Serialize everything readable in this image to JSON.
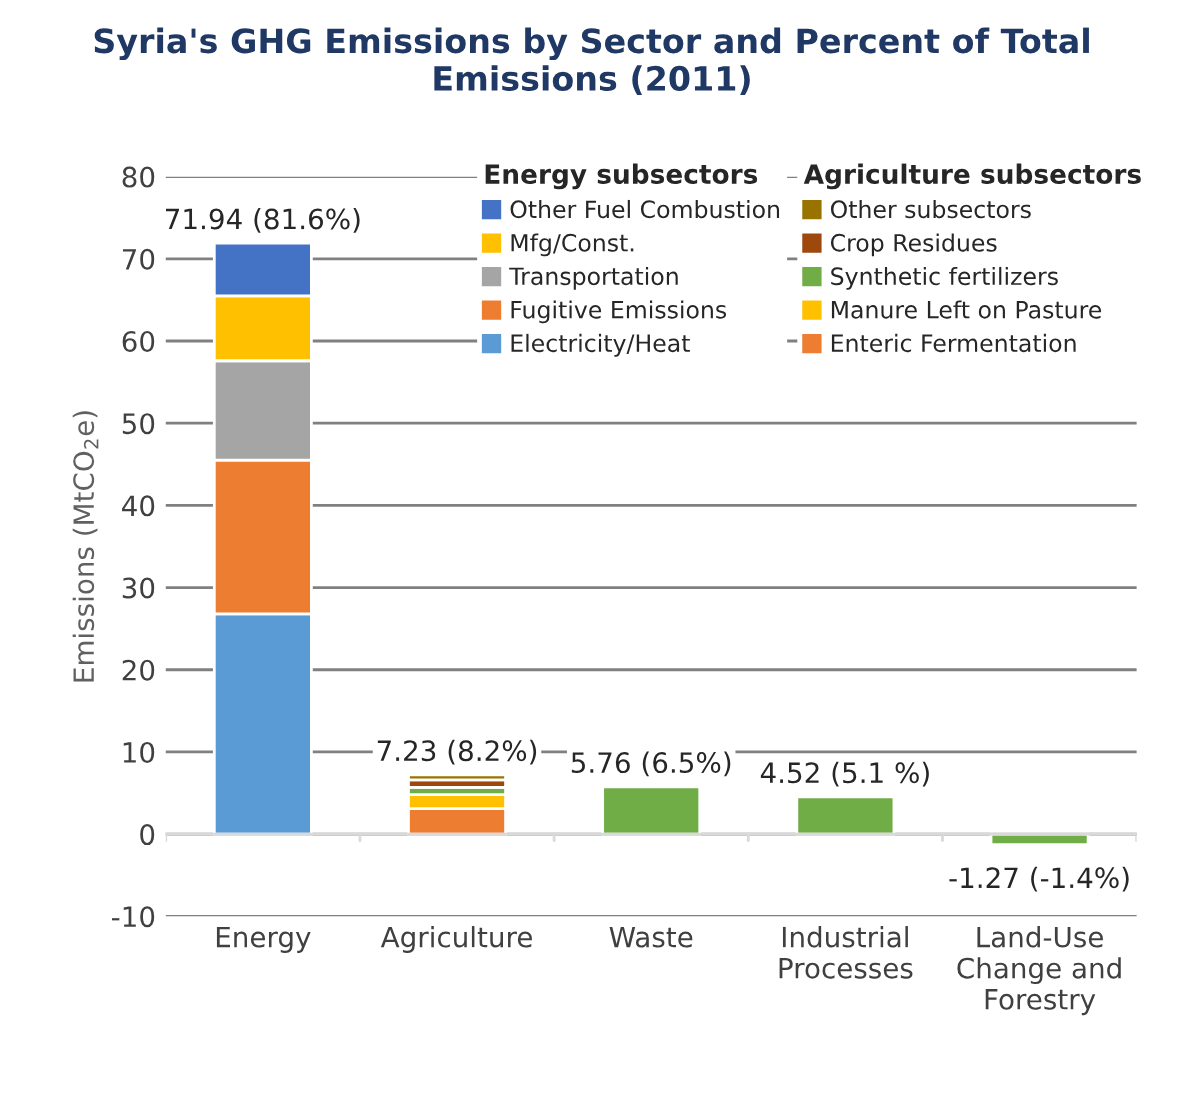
{
  "chart_data": {
    "type": "bar",
    "stacked": true,
    "title": "Syria's GHG Emissions by Sector and Percent of Total Emissions (2011)",
    "ylabel": "Emissions (MtCO$_{2}$e)",
    "categories": [
      "Energy",
      "Agriculture",
      "Waste",
      "Industrial\nProcesses",
      "Land-Use\nChange and\nForestry"
    ],
    "series": [
      {
        "name": "Electricity/Heat",
        "color": "#5b9bd5",
        "values": [
          26.8,
          null,
          null,
          null,
          null
        ]
      },
      {
        "name": "Fugitive Emissions",
        "color": "#ed7d31",
        "values": [
          18.7,
          null,
          null,
          null,
          null
        ]
      },
      {
        "name": "Transportation",
        "color": "#a5a5a5",
        "values": [
          12.1,
          null,
          null,
          null,
          null
        ]
      },
      {
        "name": "Mfg/Const.",
        "color": "#ffc000",
        "values": [
          7.9,
          null,
          null,
          null,
          null
        ]
      },
      {
        "name": "Other Fuel Combustion",
        "color": "#4472c4",
        "values": [
          6.4,
          null,
          null,
          null,
          null
        ]
      },
      {
        "name": "Enteric Fermentation",
        "color": "#ed7d31",
        "values": [
          null,
          3.1,
          null,
          null,
          null
        ]
      },
      {
        "name": "Manure Left on Pasture",
        "color": "#ffc000",
        "values": [
          null,
          1.7,
          null,
          null,
          null
        ]
      },
      {
        "name": "Synthetic fertilizers",
        "color": "#70ad47",
        "values": [
          null,
          0.9,
          null,
          null,
          null
        ]
      },
      {
        "name": "Crop Residues",
        "color": "#9e480e",
        "values": [
          null,
          0.9,
          null,
          null,
          null
        ]
      },
      {
        "name": "Other subsectors",
        "color": "#997300",
        "values": [
          null,
          0.6,
          null,
          null,
          null
        ]
      },
      {
        "color": "#70ad47",
        "values": [
          null,
          null,
          5.76,
          4.52,
          -1.27
        ]
      }
    ],
    "totals": [
      "71.94 (81.6%)",
      "7.23 (8.2%)",
      "5.76 (6.5%)",
      "4.52 (5.1 %)",
      "-1.27 (-1.4%)"
    ],
    "annotations": [
      "Energy subsectors",
      "Agriculture subsectors"
    ],
    "ylim": [
      -10,
      80
    ],
    "yticks": [
      -10,
      0,
      10,
      20,
      30,
      40,
      50,
      60,
      70,
      80
    ],
    "grid": "y",
    "legend": "top right"
  }
}
